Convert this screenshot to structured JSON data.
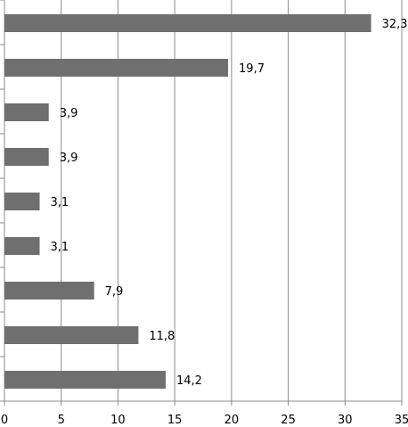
{
  "chart_data": {
    "type": "bar",
    "orientation": "horizontal",
    "values": [
      32.3,
      19.7,
      3.9,
      3.9,
      3.1,
      3.1,
      7.9,
      11.8,
      14.2
    ],
    "value_labels": [
      "32,3",
      "19,7",
      "3,9",
      "3,9",
      "3,1",
      "3,1",
      "7,9",
      "11,8",
      "14,2"
    ],
    "xlim": [
      0,
      35
    ],
    "x_ticks": [
      0,
      5,
      10,
      15,
      20,
      25,
      30,
      35
    ],
    "x_tick_labels": [
      "0",
      "5",
      "10",
      "15",
      "20",
      "25",
      "30",
      "35"
    ],
    "title": "",
    "xlabel": "",
    "ylabel": "",
    "grid": "vertical",
    "legend": "none",
    "bar_color": "#6f6f6f",
    "grid_color": "#8c8c8c"
  }
}
